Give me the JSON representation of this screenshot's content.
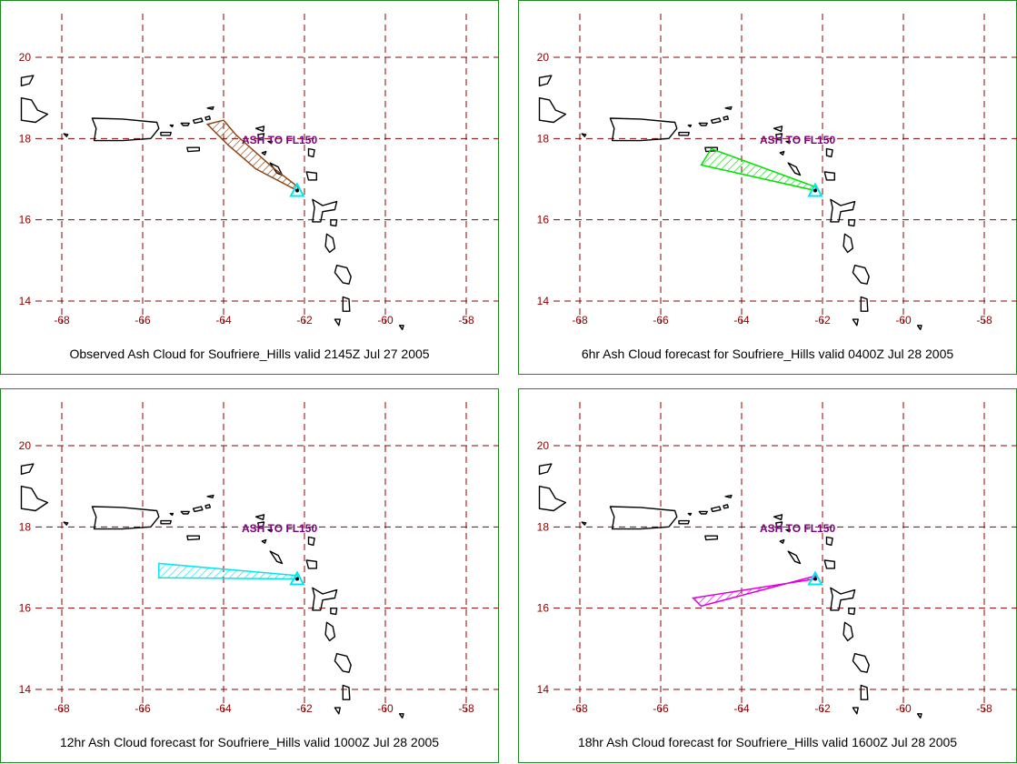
{
  "map": {
    "projection": "lat-lon",
    "lat_range": [
      13.7,
      21.4
    ],
    "lon_range": [
      -68.9,
      -57.2
    ],
    "lat_ticks": [
      {
        "value": 20,
        "label": "20"
      },
      {
        "value": 18,
        "label": "18"
      },
      {
        "value": 16,
        "label": "16"
      },
      {
        "value": 14,
        "label": "14"
      }
    ],
    "lon_ticks": [
      {
        "value": -68,
        "label": "-68"
      },
      {
        "value": -66,
        "label": "-66"
      },
      {
        "value": -64,
        "label": "-64"
      },
      {
        "value": -62,
        "label": "-62"
      },
      {
        "value": -60,
        "label": "-60"
      },
      {
        "value": -58,
        "label": "-58"
      }
    ],
    "grid_color": "#8b0000",
    "frame_color": "#1e8a1e",
    "volcano": {
      "name": "Soufriere_Hills",
      "lat": 16.72,
      "lon": -62.18,
      "symbol": "triangle",
      "color": "#00e5ee"
    }
  },
  "panels": [
    {
      "caption": "Observed Ash Cloud for Soufriere_Hills valid 2145Z Jul 27 2005",
      "ash_label": "ASH TO FL150",
      "cloud_color": "#8b4513",
      "cloud_polygon": [
        [
          -62.18,
          16.72
        ],
        [
          -63.2,
          17.25
        ],
        [
          -63.9,
          17.85
        ],
        [
          -64.4,
          18.35
        ],
        [
          -64.0,
          18.45
        ],
        [
          -63.7,
          18.1
        ],
        [
          -62.8,
          17.3
        ],
        [
          -62.15,
          16.8
        ]
      ]
    },
    {
      "caption": "6hr Ash Cloud forecast for Soufriere_Hills valid 0400Z Jul 28 2005",
      "ash_label": "ASH TO FL150",
      "cloud_color": "#00e000",
      "cloud_polygon": [
        [
          -62.18,
          16.72
        ],
        [
          -65.0,
          17.35
        ],
        [
          -64.75,
          17.75
        ],
        [
          -62.15,
          16.8
        ]
      ]
    },
    {
      "caption": "12hr Ash Cloud forecast for Soufriere_Hills valid 1000Z Jul 28 2005",
      "ash_label": "ASH TO FL150",
      "cloud_color": "#00e5ee",
      "cloud_polygon": [
        [
          -62.18,
          16.72
        ],
        [
          -65.6,
          16.75
        ],
        [
          -65.6,
          17.1
        ],
        [
          -62.15,
          16.8
        ]
      ]
    },
    {
      "caption": "18hr Ash Cloud forecast for Soufriere_Hills valid 1600Z Jul 28 2005",
      "ash_label": "ASH TO FL150",
      "cloud_color": "#e000e0",
      "cloud_polygon": [
        [
          -62.18,
          16.72
        ],
        [
          -65.2,
          16.25
        ],
        [
          -65.0,
          16.05
        ],
        [
          -62.15,
          16.8
        ]
      ]
    }
  ],
  "coastlines": [
    {
      "name": "hispaniola",
      "points": [
        [
          -69.0,
          19.0
        ],
        [
          -68.75,
          18.95
        ],
        [
          -68.6,
          18.7
        ],
        [
          -68.35,
          18.6
        ],
        [
          -68.65,
          18.4
        ],
        [
          -69.0,
          18.45
        ]
      ]
    },
    {
      "name": "hispaniola-north",
      "points": [
        [
          -69.0,
          19.5
        ],
        [
          -68.7,
          19.55
        ],
        [
          -68.8,
          19.35
        ],
        [
          -69.0,
          19.3
        ]
      ]
    },
    {
      "name": "puerto-rico",
      "points": [
        [
          -67.25,
          18.5
        ],
        [
          -66.5,
          18.48
        ],
        [
          -65.65,
          18.4
        ],
        [
          -65.6,
          18.25
        ],
        [
          -65.8,
          18.0
        ],
        [
          -66.5,
          17.95
        ],
        [
          -67.2,
          17.95
        ],
        [
          -67.15,
          18.25
        ]
      ]
    },
    {
      "name": "mona",
      "points": [
        [
          -67.95,
          18.12
        ],
        [
          -67.85,
          18.1
        ],
        [
          -67.88,
          18.05
        ]
      ]
    },
    {
      "name": "vieques",
      "points": [
        [
          -65.55,
          18.15
        ],
        [
          -65.3,
          18.15
        ],
        [
          -65.32,
          18.08
        ],
        [
          -65.55,
          18.08
        ]
      ]
    },
    {
      "name": "culebra",
      "points": [
        [
          -65.32,
          18.33
        ],
        [
          -65.25,
          18.33
        ],
        [
          -65.27,
          18.29
        ]
      ]
    },
    {
      "name": "st-thomas",
      "points": [
        [
          -65.05,
          18.38
        ],
        [
          -64.85,
          18.38
        ],
        [
          -64.88,
          18.32
        ],
        [
          -65.0,
          18.32
        ]
      ]
    },
    {
      "name": "st-john-tortola",
      "points": [
        [
          -64.75,
          18.45
        ],
        [
          -64.55,
          18.5
        ],
        [
          -64.52,
          18.42
        ],
        [
          -64.72,
          18.38
        ]
      ]
    },
    {
      "name": "virgin-gorda",
      "points": [
        [
          -64.45,
          18.52
        ],
        [
          -64.35,
          18.55
        ],
        [
          -64.33,
          18.48
        ],
        [
          -64.43,
          18.46
        ]
      ]
    },
    {
      "name": "anegada",
      "points": [
        [
          -64.4,
          18.75
        ],
        [
          -64.25,
          18.78
        ],
        [
          -64.27,
          18.72
        ]
      ]
    },
    {
      "name": "st-croix",
      "points": [
        [
          -64.9,
          17.78
        ],
        [
          -64.6,
          17.78
        ],
        [
          -64.6,
          17.7
        ],
        [
          -64.88,
          17.68
        ]
      ]
    },
    {
      "name": "anguilla",
      "points": [
        [
          -63.2,
          18.25
        ],
        [
          -63.0,
          18.3
        ],
        [
          -63.02,
          18.18
        ]
      ]
    },
    {
      "name": "st-martin",
      "points": [
        [
          -63.15,
          18.1
        ],
        [
          -63.0,
          18.12
        ],
        [
          -63.02,
          18.02
        ],
        [
          -63.13,
          18.0
        ]
      ]
    },
    {
      "name": "st-barts",
      "points": [
        [
          -62.9,
          17.93
        ],
        [
          -62.8,
          17.93
        ],
        [
          -62.82,
          17.88
        ]
      ]
    },
    {
      "name": "saba-statia",
      "points": [
        [
          -63.05,
          17.65
        ],
        [
          -62.95,
          17.68
        ],
        [
          -62.98,
          17.6
        ]
      ]
    },
    {
      "name": "barbuda",
      "points": [
        [
          -61.9,
          17.75
        ],
        [
          -61.75,
          17.72
        ],
        [
          -61.78,
          17.55
        ],
        [
          -61.9,
          17.58
        ]
      ]
    },
    {
      "name": "st-kitts",
      "points": [
        [
          -62.85,
          17.4
        ],
        [
          -62.65,
          17.3
        ],
        [
          -62.55,
          17.1
        ],
        [
          -62.68,
          17.15
        ]
      ]
    },
    {
      "name": "antigua",
      "points": [
        [
          -61.95,
          17.18
        ],
        [
          -61.7,
          17.15
        ],
        [
          -61.7,
          16.98
        ],
        [
          -61.9,
          16.98
        ]
      ]
    },
    {
      "name": "guadeloupe",
      "points": [
        [
          -61.8,
          16.5
        ],
        [
          -61.55,
          16.35
        ],
        [
          -61.2,
          16.45
        ],
        [
          -61.25,
          16.25
        ],
        [
          -61.55,
          16.2
        ],
        [
          -61.6,
          15.95
        ],
        [
          -61.8,
          15.95
        ],
        [
          -61.75,
          16.3
        ]
      ]
    },
    {
      "name": "marie-galante",
      "points": [
        [
          -61.35,
          16.0
        ],
        [
          -61.2,
          16.0
        ],
        [
          -61.22,
          15.85
        ],
        [
          -61.35,
          15.87
        ]
      ]
    },
    {
      "name": "dominica",
      "points": [
        [
          -61.45,
          15.65
        ],
        [
          -61.3,
          15.55
        ],
        [
          -61.25,
          15.3
        ],
        [
          -61.38,
          15.2
        ],
        [
          -61.48,
          15.35
        ]
      ]
    },
    {
      "name": "martinique",
      "points": [
        [
          -61.2,
          14.88
        ],
        [
          -60.95,
          14.82
        ],
        [
          -60.85,
          14.6
        ],
        [
          -60.9,
          14.42
        ],
        [
          -61.05,
          14.45
        ],
        [
          -61.25,
          14.7
        ]
      ]
    },
    {
      "name": "st-lucia",
      "points": [
        [
          -61.05,
          14.1
        ],
        [
          -60.9,
          14.05
        ],
        [
          -60.88,
          13.75
        ],
        [
          -61.05,
          13.75
        ]
      ]
    },
    {
      "name": "st-vincent-north",
      "points": [
        [
          -61.25,
          13.55
        ],
        [
          -61.12,
          13.55
        ],
        [
          -61.15,
          13.4
        ]
      ]
    },
    {
      "name": "barbados-north",
      "points": [
        [
          -59.65,
          13.4
        ],
        [
          -59.55,
          13.4
        ],
        [
          -59.58,
          13.3
        ]
      ]
    }
  ]
}
